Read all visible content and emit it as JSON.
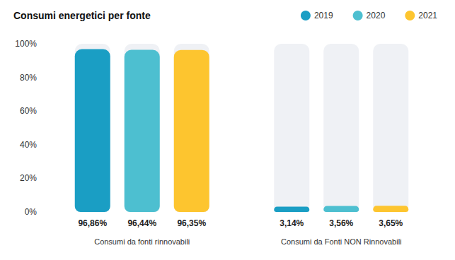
{
  "chart_data": {
    "type": "bar",
    "title": "Consumi energetici per fonte",
    "categories": [
      "Consumi da fonti rinnovabili",
      "Consumi da Fonti NON Rinnovabili"
    ],
    "series": [
      {
        "name": "2019",
        "color": "#1a9ec4",
        "values": [
          96.86,
          3.14
        ],
        "value_labels": [
          "96,86%",
          "3,14%"
        ]
      },
      {
        "name": "2020",
        "color": "#4dbfd0",
        "values": [
          96.44,
          3.56
        ],
        "value_labels": [
          "96,44%",
          "3,56%"
        ]
      },
      {
        "name": "2021",
        "color": "#fdc52f",
        "values": [
          96.35,
          3.65
        ],
        "value_labels": [
          "96,35%",
          "3,65%"
        ]
      }
    ],
    "ylim": [
      0,
      100
    ],
    "yticks": [
      {
        "value": 0,
        "label": "0%"
      },
      {
        "value": 20,
        "label": "20%"
      },
      {
        "value": 40,
        "label": "40%"
      },
      {
        "value": 60,
        "label": "60%"
      },
      {
        "value": 80,
        "label": "80%"
      },
      {
        "value": 100,
        "label": "100%"
      }
    ],
    "grid": false,
    "legend": "top-right",
    "data_labels": true
  }
}
